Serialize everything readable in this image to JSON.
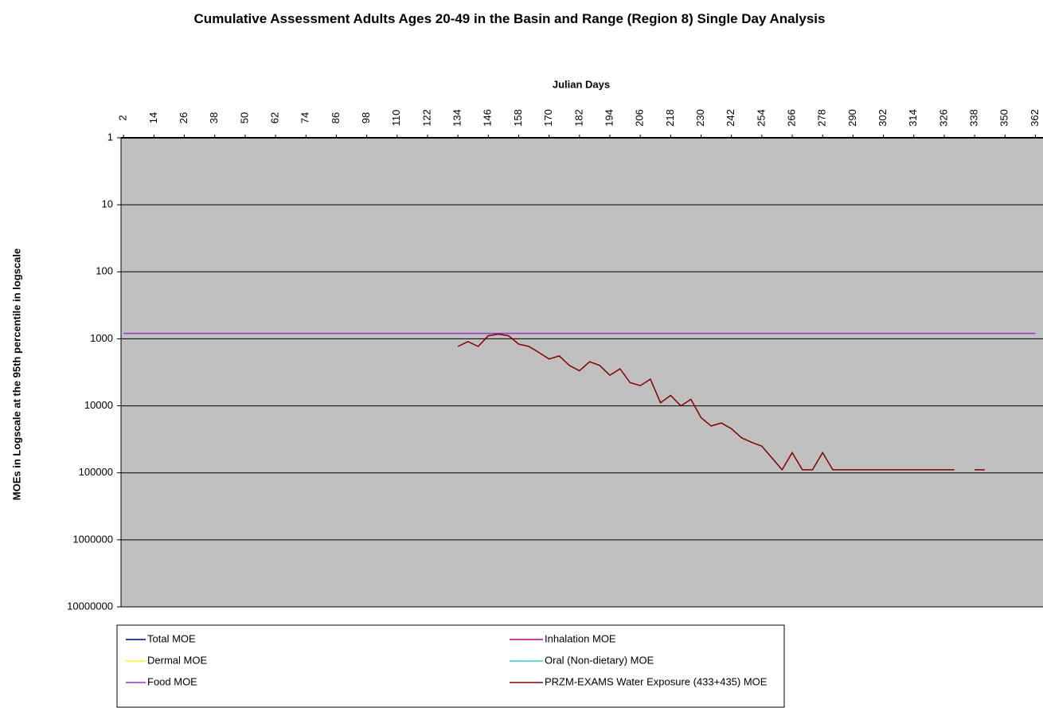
{
  "chart_data": {
    "type": "line",
    "title": "Cumulative Assessment Adults Ages 20-49 in the Basin and Range (Region 8) Single Day Analysis",
    "x_label": "Julian Days",
    "y_label": "MOEs in Logscale at the 95th percentile in logscale",
    "log_y": true,
    "y_reversed": true,
    "grid": true,
    "xlim": [
      1,
      365
    ],
    "xticks": [
      2,
      14,
      26,
      38,
      50,
      62,
      74,
      86,
      98,
      110,
      122,
      134,
      146,
      158,
      170,
      182,
      194,
      206,
      218,
      230,
      242,
      254,
      266,
      278,
      290,
      302,
      314,
      326,
      338,
      350,
      362
    ],
    "ylim": [
      1,
      10000000
    ],
    "yticks": [
      1,
      10,
      100,
      1000,
      10000,
      100000,
      1000000,
      10000000
    ],
    "x": [
      2,
      6,
      10,
      14,
      18,
      22,
      26,
      30,
      34,
      38,
      42,
      46,
      50,
      54,
      58,
      62,
      66,
      70,
      74,
      78,
      82,
      86,
      90,
      94,
      98,
      102,
      106,
      110,
      114,
      118,
      122,
      126,
      130,
      134,
      138,
      142,
      146,
      150,
      154,
      158,
      162,
      166,
      170,
      174,
      178,
      182,
      186,
      190,
      194,
      198,
      202,
      206,
      210,
      214,
      218,
      222,
      226,
      230,
      234,
      238,
      242,
      246,
      250,
      254,
      258,
      262,
      266,
      270,
      274,
      278,
      282,
      286,
      290,
      294,
      298,
      302,
      306,
      310,
      314,
      318,
      322,
      326,
      330,
      334,
      338,
      342,
      346,
      350,
      354,
      358,
      362
    ],
    "series": [
      {
        "name": "Total MOE",
        "color": "#000080",
        "values": [
          null,
          null,
          null,
          null,
          null,
          null,
          null,
          null,
          null,
          null,
          null,
          null,
          null,
          null,
          null,
          null,
          null,
          null,
          null,
          null,
          null,
          null,
          null,
          null,
          null,
          null,
          null,
          null,
          null,
          null,
          null,
          null,
          null,
          null,
          null,
          null,
          null,
          null,
          null,
          null,
          null,
          null,
          null,
          null,
          null,
          null,
          null,
          null,
          null,
          null,
          null,
          null,
          null,
          null,
          null,
          null,
          null,
          null,
          null,
          null,
          null,
          null,
          null,
          null,
          null,
          null,
          null,
          null,
          null,
          null,
          null,
          null,
          null,
          null,
          null,
          null,
          null,
          null,
          null,
          null,
          null,
          null,
          null,
          null,
          null,
          null,
          null,
          null,
          null,
          null,
          null
        ]
      },
      {
        "name": "Inhalation MOE",
        "color": "#c00080",
        "values": [
          null,
          null,
          null,
          null,
          null,
          null,
          null,
          null,
          null,
          null,
          null,
          null,
          null,
          null,
          null,
          null,
          null,
          null,
          null,
          null,
          null,
          null,
          null,
          null,
          null,
          null,
          null,
          null,
          null,
          null,
          null,
          null,
          null,
          null,
          null,
          null,
          null,
          null,
          null,
          null,
          null,
          null,
          null,
          null,
          null,
          null,
          null,
          null,
          null,
          null,
          null,
          null,
          null,
          null,
          null,
          null,
          null,
          null,
          null,
          null,
          null,
          null,
          null,
          null,
          null,
          null,
          null,
          null,
          null,
          null,
          null,
          null,
          null,
          null,
          null,
          null,
          null,
          null,
          null,
          null,
          null,
          null,
          null,
          null,
          null,
          null,
          null,
          null,
          null,
          null,
          null
        ]
      },
      {
        "name": "Dermal MOE",
        "color": "#ffff00",
        "values": [
          null,
          null,
          null,
          null,
          null,
          null,
          null,
          null,
          null,
          null,
          null,
          null,
          null,
          null,
          null,
          null,
          null,
          null,
          null,
          null,
          null,
          null,
          null,
          null,
          null,
          null,
          null,
          null,
          null,
          null,
          null,
          null,
          null,
          null,
          null,
          null,
          null,
          null,
          null,
          null,
          null,
          null,
          null,
          null,
          null,
          null,
          null,
          null,
          null,
          null,
          null,
          null,
          null,
          null,
          null,
          null,
          null,
          null,
          null,
          null,
          null,
          null,
          null,
          null,
          null,
          null,
          null,
          null,
          null,
          null,
          null,
          null,
          null,
          null,
          null,
          null,
          null,
          null,
          null,
          null,
          null,
          null,
          null,
          null,
          null,
          null,
          null,
          null,
          null,
          null,
          null
        ]
      },
      {
        "name": "Oral (Non-dietary) MOE",
        "color": "#33cccc",
        "values": [
          null,
          null,
          null,
          null,
          null,
          null,
          null,
          null,
          null,
          null,
          null,
          null,
          null,
          null,
          null,
          null,
          null,
          null,
          null,
          null,
          null,
          null,
          null,
          null,
          null,
          null,
          null,
          null,
          null,
          null,
          null,
          null,
          null,
          null,
          null,
          null,
          null,
          null,
          null,
          null,
          null,
          null,
          null,
          null,
          null,
          null,
          null,
          null,
          null,
          null,
          null,
          null,
          null,
          null,
          null,
          null,
          null,
          null,
          null,
          null,
          null,
          null,
          null,
          null,
          null,
          null,
          null,
          null,
          null,
          null,
          null,
          null,
          null,
          null,
          null,
          null,
          null,
          null,
          null,
          null,
          null,
          null,
          null,
          null,
          null,
          null,
          null,
          null,
          null,
          null,
          null
        ]
      },
      {
        "name": "Food MOE",
        "color": "#9933cc",
        "values": [
          830,
          830,
          830,
          830,
          830,
          830,
          830,
          830,
          830,
          830,
          830,
          830,
          830,
          830,
          830,
          830,
          830,
          830,
          830,
          830,
          830,
          830,
          830,
          830,
          830,
          830,
          830,
          830,
          830,
          830,
          830,
          830,
          830,
          830,
          830,
          830,
          830,
          830,
          830,
          830,
          830,
          830,
          830,
          830,
          830,
          830,
          830,
          830,
          830,
          830,
          830,
          830,
          830,
          830,
          830,
          830,
          830,
          830,
          830,
          830,
          830,
          830,
          830,
          830,
          830,
          830,
          830,
          830,
          830,
          830,
          830,
          830,
          830,
          830,
          830,
          830,
          830,
          830,
          830,
          830,
          830,
          830,
          830,
          830,
          830,
          830,
          830,
          830,
          830,
          830,
          830
        ]
      },
      {
        "name": "PRZM-EXAMS Water Exposure (433+435) MOE",
        "color": "#800000",
        "values": [
          null,
          null,
          null,
          null,
          null,
          null,
          null,
          null,
          null,
          null,
          null,
          null,
          null,
          null,
          null,
          null,
          null,
          null,
          null,
          null,
          null,
          null,
          null,
          null,
          null,
          null,
          null,
          null,
          null,
          null,
          null,
          null,
          null,
          1300,
          1100,
          1300,
          900,
          850,
          900,
          1200,
          1300,
          1600,
          2000,
          1800,
          2500,
          3000,
          2200,
          2500,
          3500,
          2800,
          4500,
          5000,
          4000,
          9000,
          7000,
          10000,
          8000,
          15000,
          20000,
          18000,
          22000,
          30000,
          35000,
          40000,
          60000,
          90000,
          50000,
          90000,
          90000,
          50000,
          90000,
          90000,
          90000,
          90000,
          90000,
          90000,
          90000,
          90000,
          90000,
          90000,
          90000,
          90000,
          90000,
          null,
          90000,
          90000,
          null,
          null,
          null,
          null,
          null
        ]
      }
    ]
  }
}
